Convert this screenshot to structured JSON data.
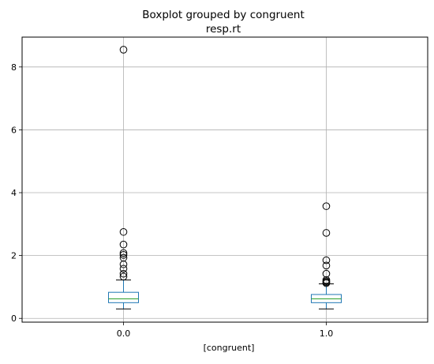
{
  "chart_data": {
    "type": "boxplot",
    "title": "Boxplot grouped by congruent",
    "subtitle": "resp.rt",
    "xlabel": "[congruent]",
    "ylabel": "",
    "categories": [
      "0.0",
      "1.0"
    ],
    "ylim": [
      -0.12,
      8.95
    ],
    "yticks": [
      0,
      2,
      4,
      6,
      8
    ],
    "grid": true,
    "boxes": [
      {
        "category": "0.0",
        "whisker_low": 0.3,
        "q1": 0.5,
        "median": 0.62,
        "q3": 0.83,
        "whisker_high": 1.22,
        "outliers": [
          1.33,
          1.42,
          1.58,
          1.72,
          1.93,
          2.02,
          2.08,
          2.35,
          2.75,
          8.55
        ]
      },
      {
        "category": "1.0",
        "whisker_low": 0.3,
        "q1": 0.5,
        "median": 0.62,
        "q3": 0.76,
        "whisker_high": 1.1,
        "outliers": [
          1.12,
          1.15,
          1.18,
          1.22,
          1.42,
          1.68,
          1.85,
          2.72,
          3.57
        ]
      }
    ],
    "colors": {
      "box": "#1f77b4",
      "median": "#2ca02c",
      "whisker": "#1f77b4",
      "cap": "#000000",
      "grid": "#b0b0b0"
    }
  }
}
